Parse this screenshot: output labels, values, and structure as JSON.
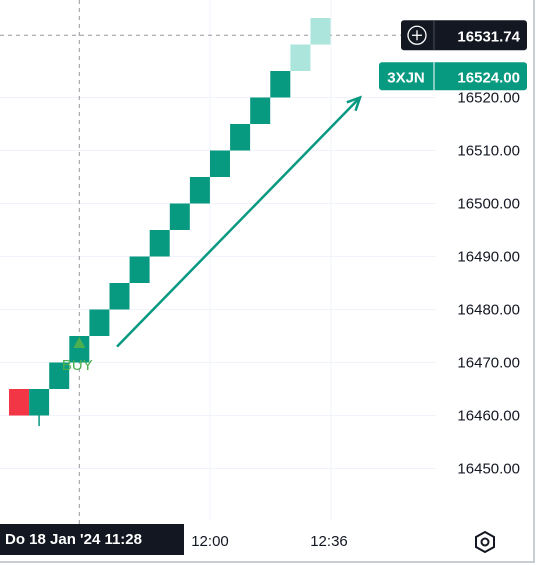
{
  "chart_data": {
    "type": "renko",
    "brick_size": 5,
    "y_ticks": [
      16450,
      16460,
      16470,
      16480,
      16490,
      16500,
      16510,
      16520
    ],
    "y_tick_labels": [
      "16450.00",
      "16460.00",
      "16470.00",
      "16480.00",
      "16490.00",
      "16500.00",
      "16510.00",
      "16520.00"
    ],
    "x_tick_labels": [
      "12:00",
      "12:36"
    ],
    "bricks": [
      {
        "open": 16465,
        "close": 16460,
        "direction": "down"
      },
      {
        "open": 16460,
        "close": 16465,
        "direction": "up"
      },
      {
        "open": 16465,
        "close": 16470,
        "direction": "up"
      },
      {
        "open": 16470,
        "close": 16475,
        "direction": "up"
      },
      {
        "open": 16475,
        "close": 16480,
        "direction": "up"
      },
      {
        "open": 16480,
        "close": 16485,
        "direction": "up"
      },
      {
        "open": 16485,
        "close": 16490,
        "direction": "up"
      },
      {
        "open": 16490,
        "close": 16495,
        "direction": "up"
      },
      {
        "open": 16495,
        "close": 16500,
        "direction": "up"
      },
      {
        "open": 16500,
        "close": 16505,
        "direction": "up"
      },
      {
        "open": 16505,
        "close": 16510,
        "direction": "up"
      },
      {
        "open": 16510,
        "close": 16515,
        "direction": "up"
      },
      {
        "open": 16515,
        "close": 16520,
        "direction": "up"
      },
      {
        "open": 16520,
        "close": 16525,
        "direction": "up"
      },
      {
        "open": 16525,
        "close": 16530,
        "direction": "projected"
      },
      {
        "open": 16530,
        "close": 16535,
        "direction": "projected"
      }
    ],
    "wick": {
      "brick_index": 1,
      "low": 16458
    },
    "signal": {
      "label": "BUY",
      "brick_index": 3,
      "value": 16473.5
    },
    "crosshair": {
      "price_label": "16531.74",
      "time_label": "Do 18 Jan '24   11:28",
      "price": 16531.74,
      "brick_index": 3
    },
    "last_price": {
      "symbol": "3XJN",
      "value_label": "16524.00",
      "value": 16524.0
    },
    "arrow": {
      "from": {
        "brick_index": 4,
        "value": 16473
      },
      "to": {
        "brick_index": 15,
        "value": 16520
      }
    },
    "colors": {
      "up": "#089981",
      "down": "#f23645",
      "projected": "#ace5dc",
      "grid": "#f0f3fa",
      "crosshair": "#9598a1",
      "text": "#131722",
      "signal": "#4caf50",
      "badge_dark": "#131722"
    },
    "grid": true
  }
}
